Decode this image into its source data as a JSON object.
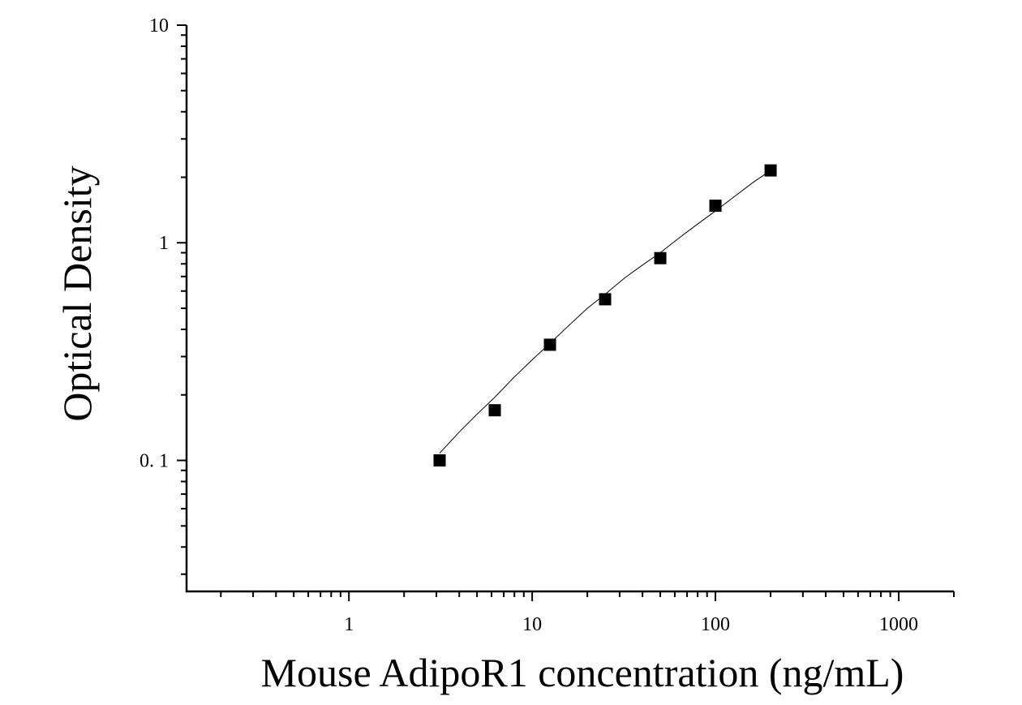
{
  "chart_data": {
    "type": "scatter",
    "title": "",
    "xlabel": "Mouse AdipoR1 concentration (ng/mL)",
    "ylabel": "Optical Density",
    "xscale": "log",
    "yscale": "log",
    "xlim": [
      0.13,
      2000
    ],
    "ylim": [
      0.025,
      10
    ],
    "x_ticks": [
      1,
      10,
      100,
      1000
    ],
    "x_tick_labels": [
      "1",
      "10",
      "100",
      "1000"
    ],
    "y_ticks": [
      0.1,
      1,
      10
    ],
    "y_tick_labels": [
      "0. 1",
      "1",
      "10"
    ],
    "grid": false,
    "legend": "none",
    "marker": "square",
    "marker_color": "#000000",
    "curve_color": "#000000",
    "series": [
      {
        "x": [
          3.125,
          6.25,
          12.5,
          25,
          50,
          100,
          200
        ],
        "y": [
          0.1,
          0.17,
          0.34,
          0.55,
          0.85,
          1.48,
          2.15
        ]
      }
    ],
    "fit_curve": {
      "x": [
        3.125,
        4,
        5,
        6.25,
        8,
        10,
        12.5,
        16,
        20,
        25,
        32,
        40,
        50,
        64,
        80,
        100,
        128,
        160,
        200
      ],
      "y": [
        0.108,
        0.135,
        0.163,
        0.195,
        0.242,
        0.29,
        0.345,
        0.42,
        0.5,
        0.58,
        0.69,
        0.79,
        0.9,
        1.06,
        1.22,
        1.4,
        1.64,
        1.89,
        2.15
      ]
    }
  }
}
